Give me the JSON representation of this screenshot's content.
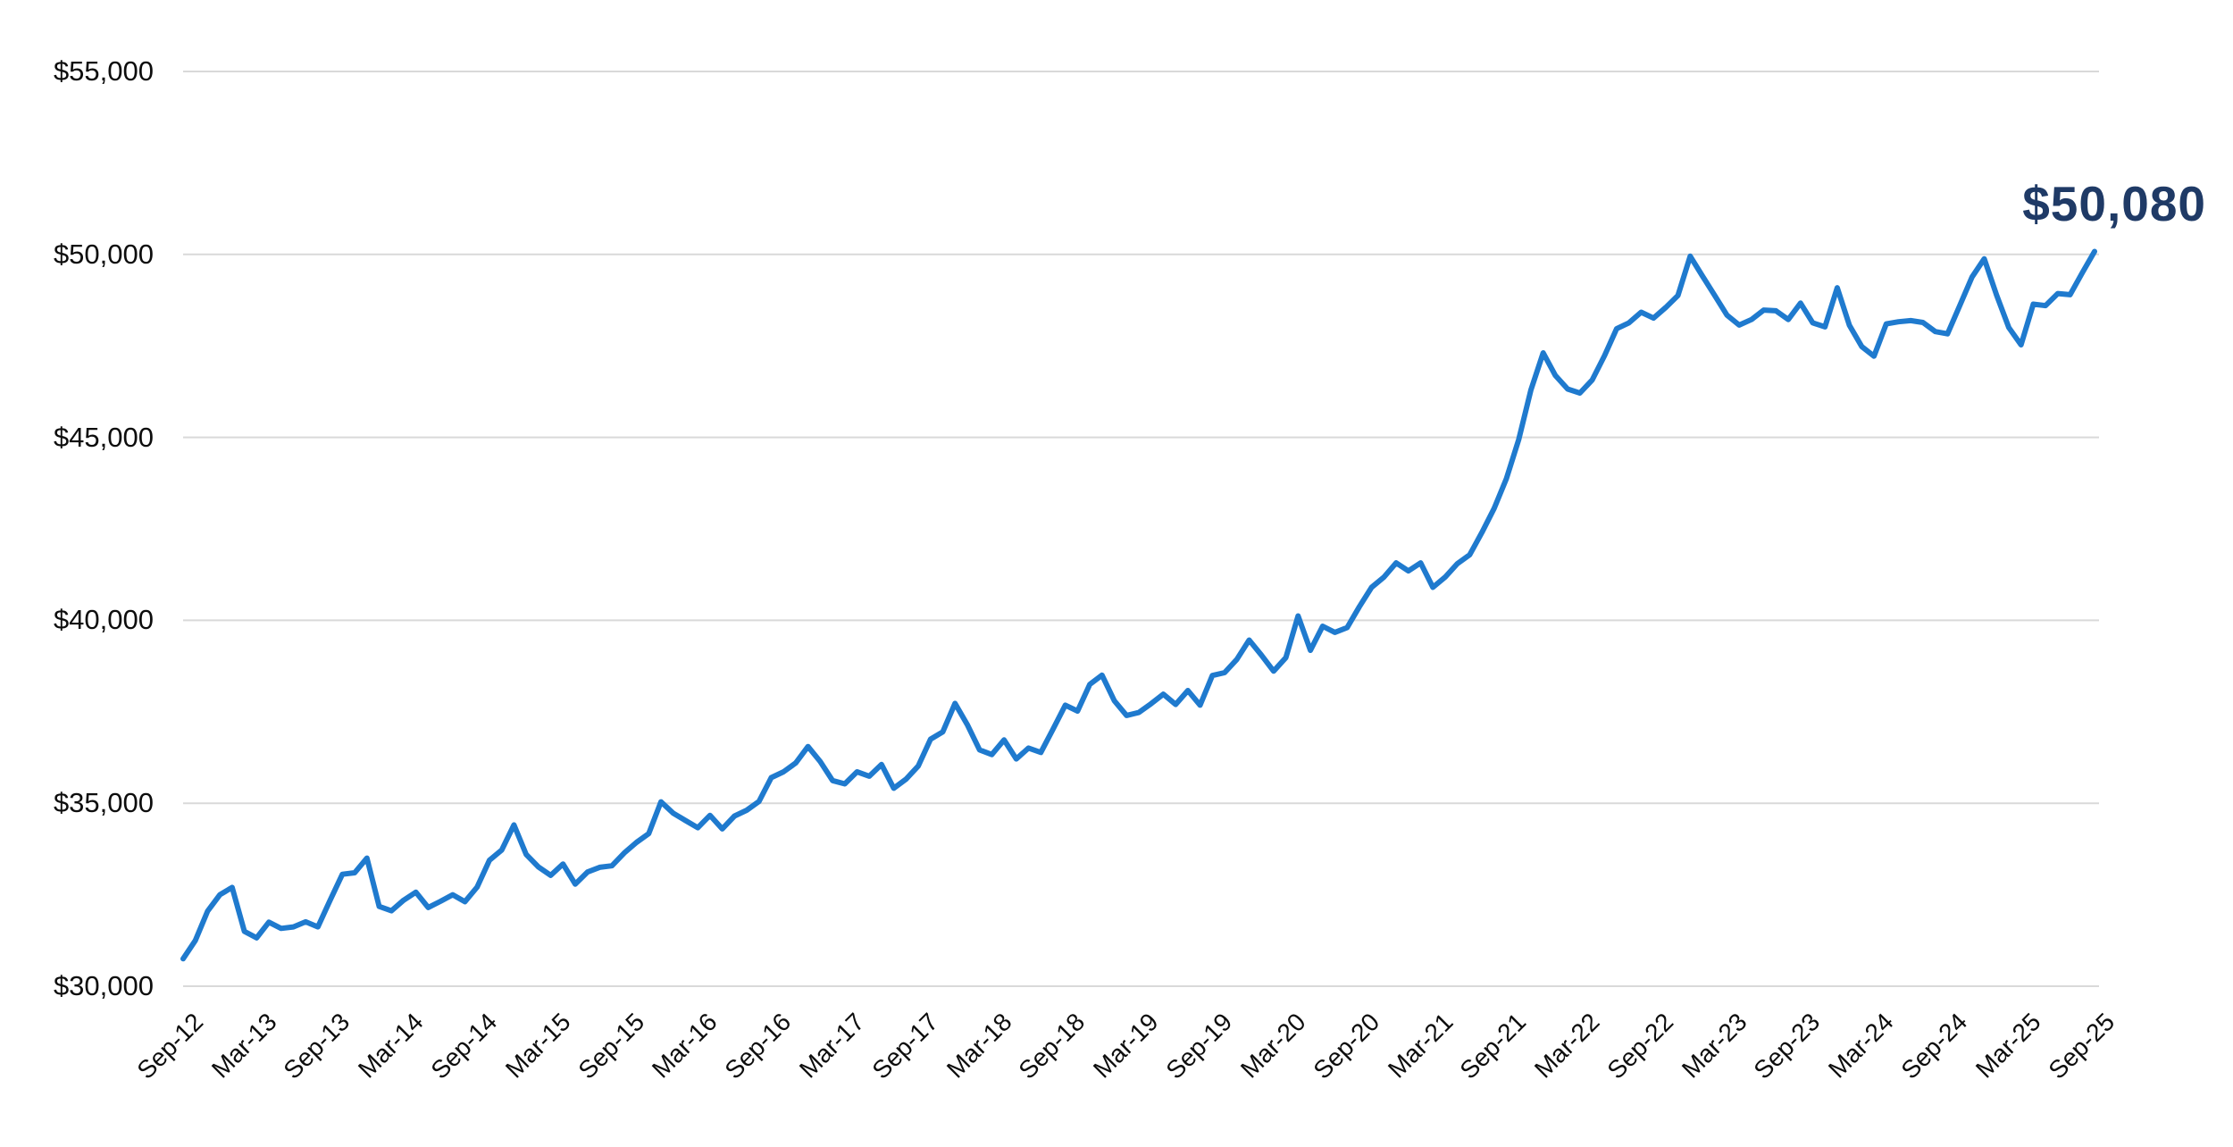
{
  "chart_data": {
    "type": "line",
    "title": "",
    "frequency": "monthly",
    "grid": "horizontal",
    "legend": "none",
    "end_label": "$50,080",
    "ylim": [
      30000,
      55000
    ],
    "y_axis": {
      "ticks": [
        {
          "value": 55000,
          "label": "$55,000"
        },
        {
          "value": 50000,
          "label": "$50,000"
        },
        {
          "value": 45000,
          "label": "$45,000"
        },
        {
          "value": 40000,
          "label": "$40,000"
        },
        {
          "value": 35000,
          "label": "$35,000"
        },
        {
          "value": 30000,
          "label": "$30,000"
        }
      ]
    },
    "x_axis": {
      "rotation_deg": -45,
      "labels": [
        "Sep-12",
        "Mar-13",
        "Sep-13",
        "Mar-14",
        "Sep-14",
        "Mar-15",
        "Sep-15",
        "Mar-16",
        "Sep-16",
        "Mar-17",
        "Sep-17",
        "Mar-18",
        "Sep-18",
        "Mar-19",
        "Sep-19",
        "Mar-20",
        "Sep-20",
        "Mar-21",
        "Sep-21",
        "Mar-22",
        "Sep-22",
        "Mar-23",
        "Sep-23",
        "Mar-24",
        "Sep-24",
        "Mar-25",
        "Sep-25"
      ]
    },
    "series": {
      "name": "value",
      "start": "Sep-12",
      "end": "Sep-25",
      "values": [
        30750,
        31250,
        32050,
        32500,
        32700,
        31500,
        31320,
        31750,
        31580,
        31620,
        31760,
        31620,
        32350,
        33060,
        33100,
        33500,
        32180,
        32060,
        32350,
        32570,
        32150,
        32320,
        32500,
        32310,
        32710,
        33440,
        33720,
        34410,
        33600,
        33260,
        33030,
        33340,
        32790,
        33120,
        33250,
        33290,
        33640,
        33930,
        34170,
        35040,
        34730,
        34530,
        34330,
        34670,
        34300,
        34650,
        34810,
        35050,
        35700,
        35860,
        36100,
        36550,
        36140,
        35620,
        35530,
        35860,
        35740,
        36060,
        35410,
        35660,
        36020,
        36750,
        36950,
        37730,
        37150,
        36460,
        36330,
        36730,
        36210,
        36510,
        36390,
        37030,
        37680,
        37520,
        38250,
        38500,
        37800,
        37400,
        37480,
        37720,
        37980,
        37700,
        38080,
        37680,
        38490,
        38570,
        38930,
        39460,
        39050,
        38610,
        38980,
        40120,
        39180,
        39840,
        39670,
        39800,
        40370,
        40900,
        41180,
        41570,
        41350,
        41570,
        40900,
        41180,
        41550,
        41790,
        42400,
        43060,
        43870,
        44940,
        46300,
        47310,
        46690,
        46320,
        46210,
        46570,
        47230,
        47970,
        48130,
        48420,
        48260,
        48550,
        48880,
        49950,
        49410,
        48880,
        48340,
        48070,
        48220,
        48480,
        48460,
        48220,
        48670,
        48130,
        48020,
        49090,
        48060,
        47480,
        47220,
        48100,
        48160,
        48190,
        48140,
        47890,
        47830,
        48600,
        49380,
        49880,
        48890,
        48000,
        47530,
        48640,
        48600,
        48930,
        48900,
        49500,
        50080
      ]
    },
    "colors": {
      "line": "#1f7ace",
      "end_label": "#1f3a66",
      "gridline": "#d9d9d9",
      "axis_text": "#0d0d0d",
      "background": "#ffffff"
    }
  }
}
